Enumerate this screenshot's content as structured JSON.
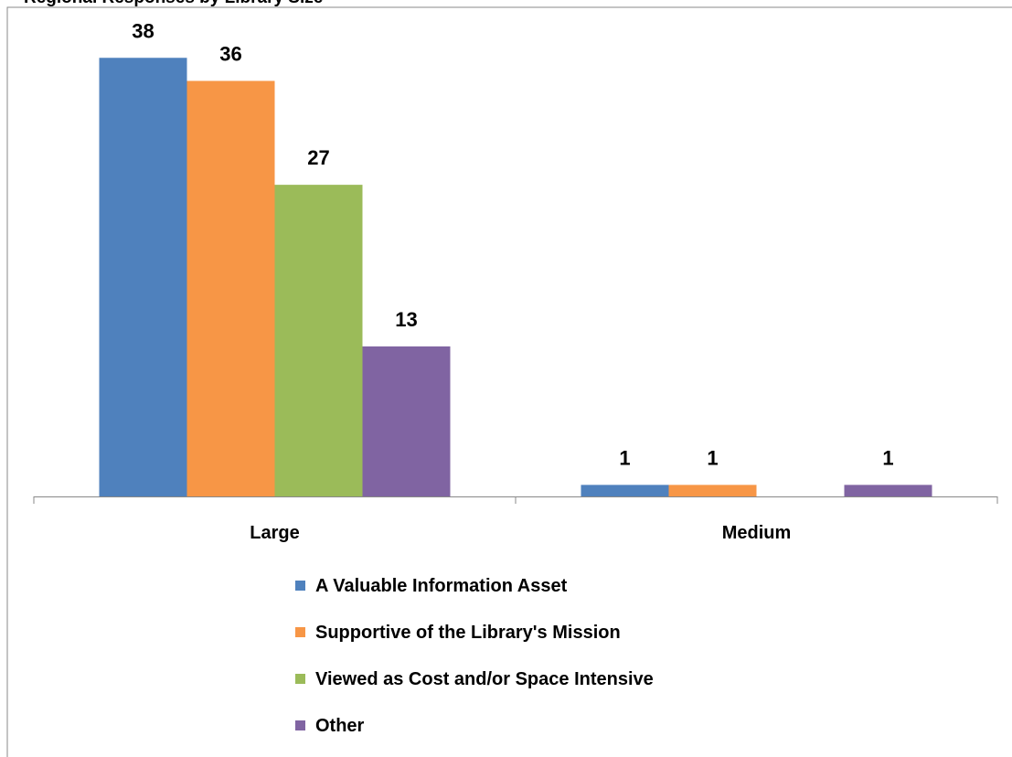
{
  "chart_data": {
    "type": "bar",
    "title": "Regional Responses by Library Size",
    "categories": [
      "Large",
      "Medium"
    ],
    "series": [
      {
        "name": "A Valuable Information Asset",
        "color": "#4f81bd",
        "values": [
          38,
          1
        ]
      },
      {
        "name": "Supportive of the Library's Mission",
        "color": "#f79646",
        "values": [
          36,
          1
        ]
      },
      {
        "name": "Viewed as Cost and/or Space Intensive",
        "color": "#9bbb59",
        "values": [
          27,
          null
        ]
      },
      {
        "name": "Other",
        "color": "#8064a2",
        "values": [
          13,
          1
        ]
      }
    ],
    "ylim": [
      0,
      40
    ],
    "legend": "bottom"
  }
}
